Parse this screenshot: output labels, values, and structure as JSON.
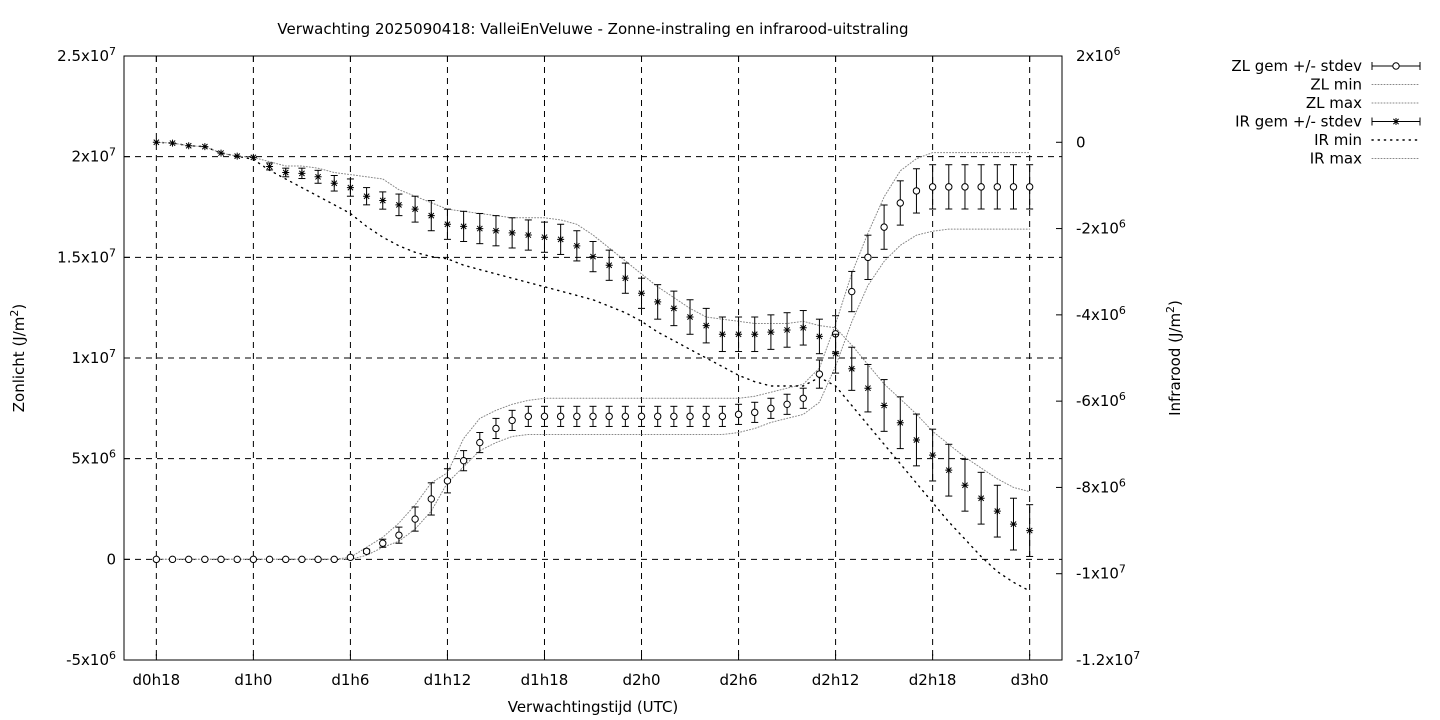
{
  "chart_data": {
    "type": "line",
    "title": "Verwachting 2025090418: ValleiEnVeluwe - Zonne-instraling en infrarood-uitstraling",
    "xlabel": "Verwachtingstijd (UTC)",
    "ylabel": "Zonlicht (J/m2)",
    "y2label": "Infrarood (J/m2)",
    "x_ticks": [
      {
        "label": "d0h18",
        "hour": 0
      },
      {
        "label": "d1h0",
        "hour": 6
      },
      {
        "label": "d1h6",
        "hour": 12
      },
      {
        "label": "d1h12",
        "hour": 18
      },
      {
        "label": "d1h18",
        "hour": 24
      },
      {
        "label": "d2h0",
        "hour": 30
      },
      {
        "label": "d2h6",
        "hour": 36
      },
      {
        "label": "d2h12",
        "hour": 42
      },
      {
        "label": "d2h18",
        "hour": 48
      },
      {
        "label": "d3h0",
        "hour": 54
      }
    ],
    "xlim_hours": [
      -2,
      56
    ],
    "y_ticks": [
      {
        "value": -5000000,
        "label": "-5x10^6"
      },
      {
        "value": 0,
        "label": "0"
      },
      {
        "value": 5000000,
        "label": "5x10^6"
      },
      {
        "value": 10000000,
        "label": "1x10^7"
      },
      {
        "value": 15000000,
        "label": "1.5x10^7"
      },
      {
        "value": 20000000,
        "label": "2x10^7"
      },
      {
        "value": 25000000,
        "label": "2.5x10^7"
      }
    ],
    "ylim": [
      -5000000,
      25000000
    ],
    "y2_ticks": [
      {
        "value": 2000000,
        "label": "2x10^6"
      },
      {
        "value": 0,
        "label": "0"
      },
      {
        "value": -2000000,
        "label": "-2x10^6"
      },
      {
        "value": -4000000,
        "label": "-4x10^6"
      },
      {
        "value": -6000000,
        "label": "-6x10^6"
      },
      {
        "value": -8000000,
        "label": "-8x10^6"
      },
      {
        "value": -10000000,
        "label": "-1x10^7"
      },
      {
        "value": -12000000,
        "label": "-1.2x10^7"
      }
    ],
    "y2lim": [
      -12000000,
      2000000
    ],
    "grid": true,
    "legend_position": "outside-top-right",
    "zl_series": {
      "hours": [
        0,
        1,
        2,
        3,
        4,
        5,
        6,
        7,
        8,
        9,
        10,
        11,
        12,
        13,
        14,
        15,
        16,
        17,
        18,
        19,
        20,
        21,
        22,
        23,
        24,
        25,
        26,
        27,
        28,
        29,
        30,
        31,
        32,
        33,
        34,
        35,
        36,
        37,
        38,
        39,
        40,
        41,
        42,
        43,
        44,
        45,
        46,
        47,
        48,
        49,
        50,
        51,
        52,
        53,
        54
      ],
      "mean": [
        0,
        0,
        0,
        0,
        0,
        0,
        0,
        0,
        0,
        0,
        0,
        0,
        100000,
        400000,
        800000,
        1200000,
        2000000,
        3000000,
        3900000,
        4900000,
        5800000,
        6500000,
        6900000,
        7100000,
        7100000,
        7100000,
        7100000,
        7100000,
        7100000,
        7100000,
        7100000,
        7100000,
        7100000,
        7100000,
        7100000,
        7100000,
        7200000,
        7300000,
        7500000,
        7700000,
        8000000,
        9200000,
        11200000,
        13300000,
        15000000,
        16500000,
        17700000,
        18300000,
        18500000,
        18500000,
        18500000,
        18500000,
        18500000,
        18500000,
        18500000
      ],
      "stdev": [
        0,
        0,
        0,
        0,
        0,
        0,
        0,
        0,
        0,
        0,
        0,
        0,
        50000,
        100000,
        200000,
        400000,
        600000,
        800000,
        600000,
        500000,
        500000,
        500000,
        500000,
        500000,
        500000,
        500000,
        500000,
        500000,
        500000,
        500000,
        500000,
        500000,
        500000,
        500000,
        500000,
        500000,
        500000,
        500000,
        500000,
        500000,
        500000,
        700000,
        900000,
        1000000,
        1100000,
        1100000,
        1100000,
        1100000,
        1100000,
        1100000,
        1100000,
        1100000,
        1100000,
        1100000,
        1100000
      ],
      "min": [
        0,
        0,
        0,
        0,
        0,
        0,
        0,
        0,
        0,
        0,
        0,
        0,
        0,
        200000,
        600000,
        900000,
        1500000,
        2400000,
        3800000,
        4600000,
        5400000,
        5800000,
        6100000,
        6200000,
        6200000,
        6200000,
        6200000,
        6200000,
        6200000,
        6200000,
        6200000,
        6200000,
        6200000,
        6200000,
        6200000,
        6200000,
        6300000,
        6500000,
        6800000,
        7000000,
        7200000,
        7800000,
        9600000,
        11800000,
        13600000,
        14800000,
        15600000,
        16100000,
        16300000,
        16400000,
        16400000,
        16400000,
        16400000,
        16400000,
        16400000
      ],
      "max": [
        0,
        0,
        0,
        0,
        0,
        0,
        0,
        0,
        0,
        0,
        0,
        0,
        100000,
        600000,
        1100000,
        1800000,
        2700000,
        3800000,
        4300000,
        6000000,
        7000000,
        7400000,
        7700000,
        7900000,
        8000000,
        8000000,
        8000000,
        8000000,
        8000000,
        8000000,
        8000000,
        8000000,
        8000000,
        8000000,
        8000000,
        8000000,
        8000000,
        8100000,
        8300000,
        8500000,
        8700000,
        9500000,
        11700000,
        14200000,
        16200000,
        18000000,
        19300000,
        19900000,
        20200000,
        20200000,
        20200000,
        20200000,
        20200000,
        20200000,
        20200000
      ]
    },
    "ir_series": {
      "hours": [
        0,
        1,
        2,
        3,
        4,
        5,
        6,
        7,
        8,
        9,
        10,
        11,
        12,
        13,
        14,
        15,
        16,
        17,
        18,
        19,
        20,
        21,
        22,
        23,
        24,
        25,
        26,
        27,
        28,
        29,
        30,
        31,
        32,
        33,
        34,
        35,
        36,
        37,
        38,
        39,
        40,
        41,
        42,
        43,
        44,
        45,
        46,
        47,
        48,
        49,
        50,
        51,
        52,
        53,
        54
      ],
      "mean": [
        0,
        -20000,
        -80000,
        -100000,
        -250000,
        -320000,
        -350000,
        -560000,
        -700000,
        -720000,
        -800000,
        -950000,
        -1050000,
        -1250000,
        -1350000,
        -1450000,
        -1550000,
        -1700000,
        -1900000,
        -1950000,
        -2000000,
        -2050000,
        -2100000,
        -2150000,
        -2200000,
        -2250000,
        -2400000,
        -2650000,
        -2850000,
        -3150000,
        -3500000,
        -3700000,
        -3850000,
        -4050000,
        -4250000,
        -4450000,
        -4450000,
        -4450000,
        -4400000,
        -4350000,
        -4300000,
        -4500000,
        -4900000,
        -5250000,
        -5700000,
        -6100000,
        -6500000,
        -6900000,
        -7250000,
        -7600000,
        -7950000,
        -8250000,
        -8550000,
        -8850000,
        -9000000
      ],
      "stdev": [
        0,
        0,
        0,
        0,
        0,
        0,
        0,
        80000,
        100000,
        120000,
        150000,
        180000,
        200000,
        200000,
        200000,
        250000,
        300000,
        350000,
        350000,
        350000,
        350000,
        350000,
        350000,
        350000,
        350000,
        350000,
        350000,
        350000,
        350000,
        350000,
        350000,
        400000,
        400000,
        400000,
        400000,
        400000,
        400000,
        400000,
        400000,
        400000,
        400000,
        400000,
        450000,
        500000,
        550000,
        600000,
        600000,
        600000,
        600000,
        600000,
        600000,
        600000,
        600000,
        600000,
        600000
      ],
      "min": [
        0,
        -20000,
        -80000,
        -100000,
        -250000,
        -320000,
        -400000,
        -650000,
        -850000,
        -1050000,
        -1250000,
        -1450000,
        -1650000,
        -1950000,
        -2200000,
        -2400000,
        -2550000,
        -2650000,
        -2700000,
        -2850000,
        -2950000,
        -3050000,
        -3150000,
        -3250000,
        -3350000,
        -3450000,
        -3550000,
        -3650000,
        -3800000,
        -3950000,
        -4150000,
        -4400000,
        -4600000,
        -4800000,
        -5000000,
        -5200000,
        -5400000,
        -5550000,
        -5650000,
        -5650000,
        -5650000,
        -5450000,
        -5650000,
        -6100000,
        -6550000,
        -7000000,
        -7450000,
        -7900000,
        -8350000,
        -8800000,
        -9200000,
        -9600000,
        -9950000,
        -10200000,
        -10400000
      ],
      "max": [
        0,
        -20000,
        -80000,
        -100000,
        -250000,
        -320000,
        -350000,
        -450000,
        -550000,
        -550000,
        -600000,
        -700000,
        -750000,
        -800000,
        -850000,
        -1100000,
        -1250000,
        -1400000,
        -1550000,
        -1600000,
        -1650000,
        -1700000,
        -1750000,
        -1750000,
        -1750000,
        -1800000,
        -1900000,
        -2150000,
        -2450000,
        -2750000,
        -3050000,
        -3350000,
        -3600000,
        -3850000,
        -4050000,
        -4100000,
        -4150000,
        -4200000,
        -4200000,
        -4200000,
        -4150000,
        -4250000,
        -4300000,
        -4700000,
        -5150000,
        -5600000,
        -5950000,
        -6300000,
        -6700000,
        -7000000,
        -7300000,
        -7550000,
        -7800000,
        -8000000,
        -8100000
      ]
    },
    "legend": [
      {
        "label": "ZL gem +/- stdev",
        "style": "errorbar-circle"
      },
      {
        "label": "ZL min",
        "style": "fine-dots"
      },
      {
        "label": "ZL max",
        "style": "fine-dots"
      },
      {
        "label": "IR gem +/- stdev",
        "style": "errorbar-star"
      },
      {
        "label": "IR min",
        "style": "coarse-dots"
      },
      {
        "label": "IR max",
        "style": "fine-dots"
      }
    ],
    "colors": {
      "line": "#000000",
      "minmax": "#888888",
      "grid": "#000000"
    }
  }
}
